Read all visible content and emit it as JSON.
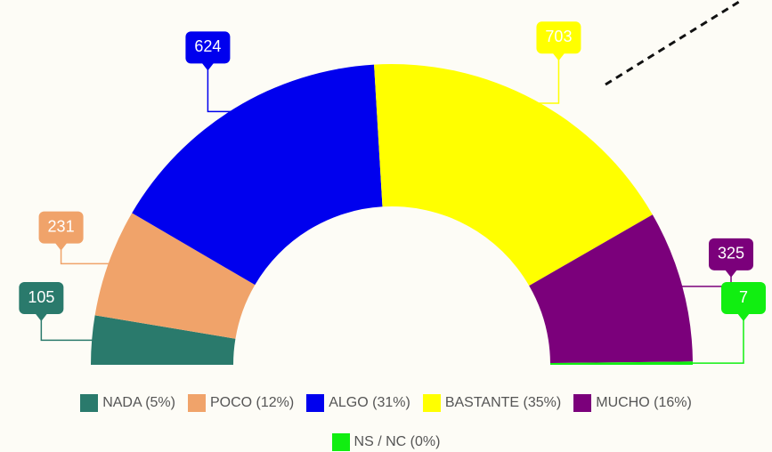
{
  "chart_data": {
    "type": "semi-donut",
    "categories": [
      "NADA (5%)",
      "POCO (12%)",
      "ALGO (31%)",
      "BASTANTE (35%)",
      "MUCHO (16%)",
      "NS / NC (0%)"
    ],
    "values": [
      105,
      231,
      624,
      703,
      325,
      7
    ],
    "colors": [
      "#2a7a6c",
      "#f0a36a",
      "#0000ee",
      "#ffff00",
      "#7b007b",
      "#11ee11"
    ],
    "legend": "bottom"
  }
}
